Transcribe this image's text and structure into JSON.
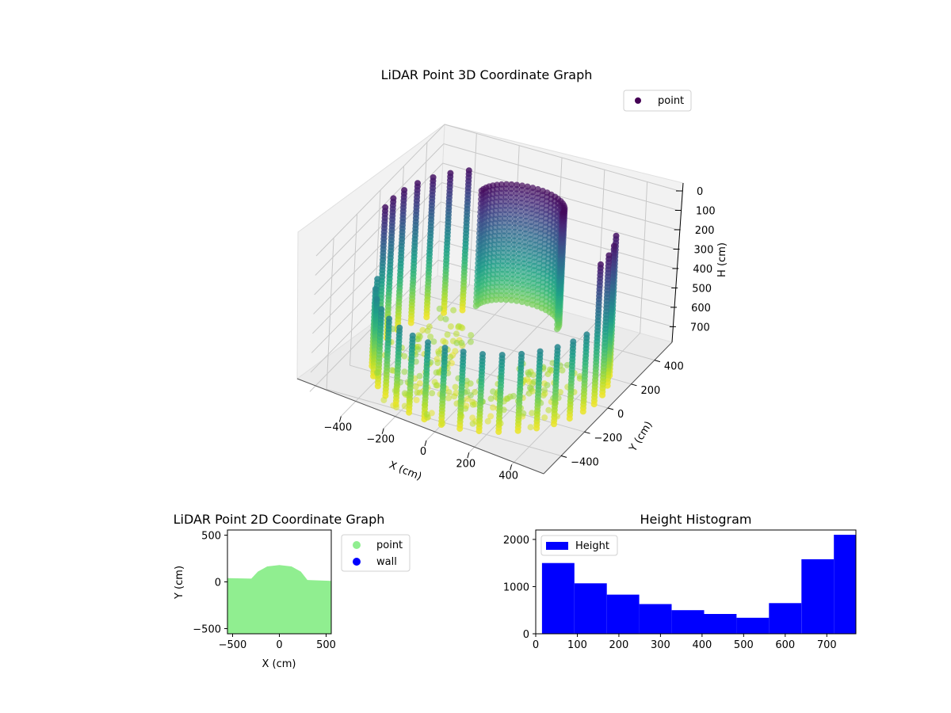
{
  "figure": {
    "background": "#ffffff"
  },
  "chart_data": [
    {
      "type": "scatter",
      "projection": "3d",
      "title": "LiDAR Point 3D Coordinate Graph",
      "xlabel": "X (cm)",
      "ylabel": "Y (cm)",
      "zlabel": "H (cm)",
      "x_ticks": [
        "−400",
        "−200",
        "0",
        "200",
        "400"
      ],
      "y_ticks": [
        "−400",
        "−200",
        "0",
        "200",
        "400"
      ],
      "z_ticks": [
        "0",
        "100",
        "200",
        "300",
        "400",
        "500",
        "600",
        "700"
      ],
      "xlim": [
        -550,
        550
      ],
      "ylim": [
        -550,
        550
      ],
      "zlim": [
        0,
        780
      ],
      "z_inverted": true,
      "grid": true,
      "colormap": "viridis",
      "legend": {
        "position": "top-right",
        "entries": [
          {
            "label": "point",
            "color": "#440154"
          }
        ]
      },
      "series": [
        {
          "name": "point",
          "shape": "room enclosure: low front arc wall around a central dome structure, points colored by height",
          "columns": 28,
          "column_angle_range_deg": [
            130,
            385
          ],
          "room_radius_cm": 500,
          "dome_radius_cm": 190,
          "dome_center": [
            0,
            210
          ],
          "height_range_cm": [
            0,
            780
          ]
        }
      ]
    },
    {
      "type": "scatter",
      "title": "LiDAR Point 2D Coordinate Graph",
      "xlabel": "X (cm)",
      "ylabel": "Y (cm)",
      "x_ticks": [
        -500,
        0,
        500
      ],
      "y_ticks": [
        -500,
        0,
        500
      ],
      "xlim": [
        -555,
        555
      ],
      "ylim": [
        -555,
        555
      ],
      "legend": {
        "position": "outside-right",
        "entries": [
          {
            "label": "point",
            "color": "#90ee90"
          },
          {
            "label": "wall",
            "color": "#0000ff"
          }
        ]
      },
      "series": [
        {
          "name": "point",
          "color": "#90ee90",
          "outline": [
            [
              -555,
              40
            ],
            [
              -300,
              35
            ],
            [
              -230,
              110
            ],
            [
              -130,
              165
            ],
            [
              0,
              180
            ],
            [
              130,
              165
            ],
            [
              230,
              110
            ],
            [
              300,
              20
            ],
            [
              555,
              10
            ],
            [
              555,
              -555
            ],
            [
              -555,
              -555
            ]
          ]
        },
        {
          "name": "wall",
          "color": "#0000ff",
          "points": []
        }
      ]
    },
    {
      "type": "bar",
      "subtype": "histogram",
      "title": "Height Histogram",
      "xlabel": "",
      "ylabel": "",
      "color": "#0000ff",
      "x_ticks": [
        0,
        100,
        200,
        300,
        400,
        500,
        600,
        700
      ],
      "y_ticks": [
        0,
        1000,
        2000
      ],
      "xlim": [
        0,
        770
      ],
      "ylim": [
        0,
        2200
      ],
      "legend": {
        "position": "top-left",
        "entries": [
          {
            "label": "Height",
            "color": "#0000ff"
          }
        ]
      },
      "bins": [
        {
          "start": 15,
          "end": 93,
          "count": 1500
        },
        {
          "start": 93,
          "end": 171,
          "count": 1070
        },
        {
          "start": 171,
          "end": 249,
          "count": 830
        },
        {
          "start": 249,
          "end": 327,
          "count": 630
        },
        {
          "start": 327,
          "end": 405,
          "count": 500
        },
        {
          "start": 405,
          "end": 483,
          "count": 420
        },
        {
          "start": 483,
          "end": 561,
          "count": 340
        },
        {
          "start": 561,
          "end": 639,
          "count": 650
        },
        {
          "start": 639,
          "end": 717,
          "count": 1580
        },
        {
          "start": 717,
          "end": 770,
          "count": 2100
        }
      ]
    }
  ]
}
